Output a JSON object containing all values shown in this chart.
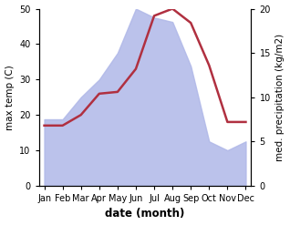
{
  "months": [
    "Jan",
    "Feb",
    "Mar",
    "Apr",
    "May",
    "Jun",
    "Jul",
    "Aug",
    "Sep",
    "Oct",
    "Nov",
    "Dec"
  ],
  "month_indices": [
    0,
    1,
    2,
    3,
    4,
    5,
    6,
    7,
    8,
    9,
    10,
    11
  ],
  "temperature": [
    17.0,
    17.0,
    20.0,
    26.0,
    26.5,
    33.0,
    48.0,
    50.0,
    46.0,
    34.0,
    18.0,
    18.0
  ],
  "precipitation": [
    7.5,
    7.5,
    10.0,
    12.0,
    15.0,
    20.0,
    19.0,
    18.5,
    13.5,
    5.0,
    4.0,
    5.0
  ],
  "temp_color": "#b03040",
  "precip_color": "#b0b8e8",
  "background_color": "#ffffff",
  "xlabel": "date (month)",
  "ylabel_left": "max temp (C)",
  "ylabel_right": "med. precipitation (kg/m2)",
  "ylim_left": [
    0,
    50
  ],
  "ylim_right": [
    0,
    20
  ],
  "temp_linewidth": 1.8,
  "xlabel_fontsize": 8.5,
  "ylabel_fontsize": 7.5,
  "tick_fontsize": 7.0
}
